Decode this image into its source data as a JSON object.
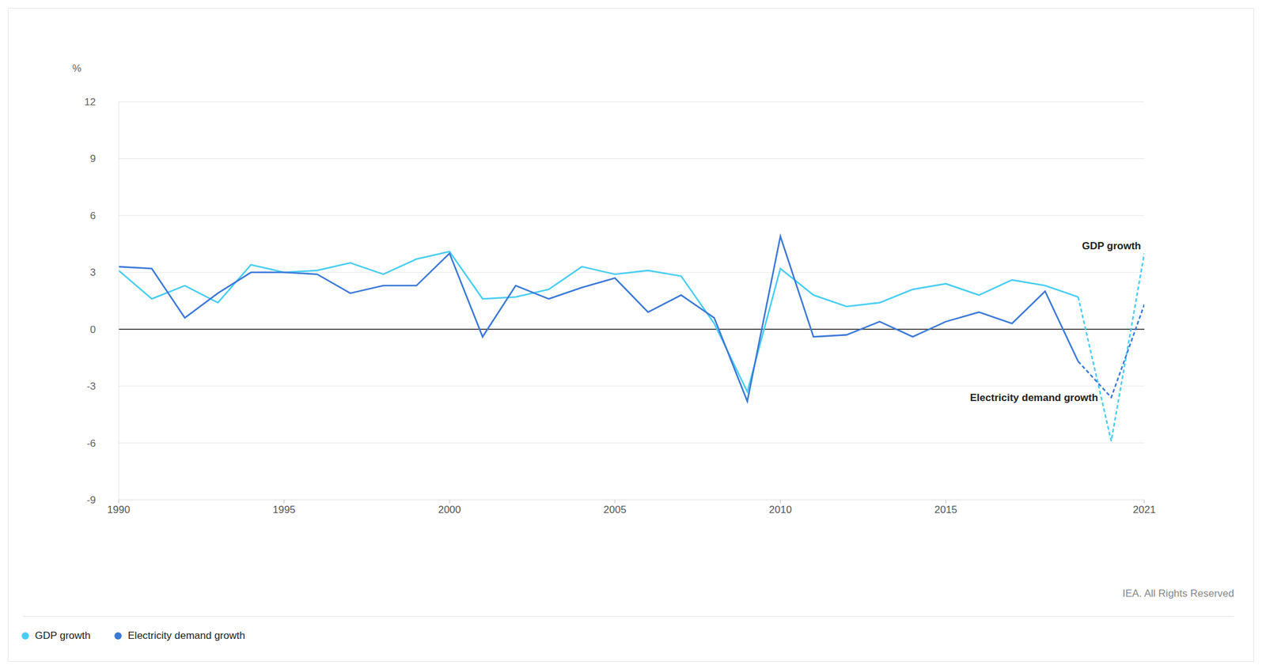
{
  "chart_data": {
    "type": "line",
    "x": [
      1990,
      1991,
      1992,
      1993,
      1994,
      1995,
      1996,
      1997,
      1998,
      1999,
      2000,
      2001,
      2002,
      2003,
      2004,
      2005,
      2006,
      2007,
      2008,
      2009,
      2010,
      2011,
      2012,
      2013,
      2014,
      2015,
      2016,
      2017,
      2018,
      2019,
      2020,
      2021
    ],
    "xlim": [
      1990,
      2021
    ],
    "xticks": [
      1990,
      1995,
      2000,
      2005,
      2010,
      2015,
      2021
    ],
    "ylim": [
      -9,
      12
    ],
    "yticks": [
      -9,
      -6,
      -3,
      0,
      3,
      6,
      9,
      12
    ],
    "y_label": "%",
    "grid": true,
    "legend": "bottom left",
    "dashed_from": 2019,
    "series": [
      {
        "name": "GDP growth",
        "color": "#47cdf2",
        "values": [
          3.1,
          1.6,
          2.3,
          1.4,
          3.4,
          3.0,
          3.1,
          3.5,
          2.9,
          3.7,
          4.1,
          1.6,
          1.7,
          2.1,
          3.3,
          2.9,
          3.1,
          2.8,
          0.3,
          -3.3,
          3.2,
          1.8,
          1.2,
          1.4,
          2.1,
          2.4,
          1.8,
          2.6,
          2.3,
          1.7,
          -5.9,
          4.0
        ]
      },
      {
        "name": "Electricity demand growth",
        "color": "#3b78d6",
        "values": [
          3.3,
          3.2,
          0.6,
          1.9,
          3.0,
          3.0,
          2.9,
          1.9,
          2.3,
          2.3,
          4.0,
          -0.4,
          2.3,
          1.6,
          2.2,
          2.7,
          0.9,
          1.8,
          0.6,
          -3.8,
          4.9,
          -0.4,
          -0.3,
          0.4,
          -0.4,
          0.4,
          0.9,
          0.3,
          2.0,
          -1.7,
          -3.6,
          1.3
        ]
      }
    ],
    "annotations": [
      {
        "text": "GDP growth",
        "x": 2020.9,
        "y": 4.4
      },
      {
        "text": "Electricity demand growth",
        "x": 2019.6,
        "y": -3.6
      }
    ],
    "source": "IEA. All Rights Reserved"
  }
}
